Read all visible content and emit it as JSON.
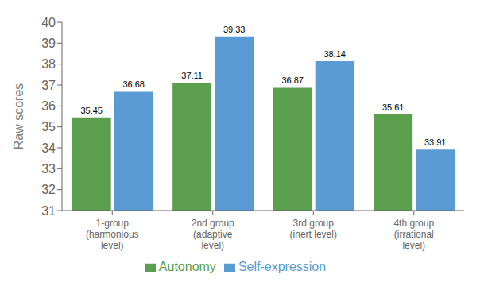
{
  "chart_data": {
    "type": "bar",
    "categories": [
      "1-group\n(harmonious\nlevel)",
      "2nd group\n(adaptive\nlevel)",
      "3rd group\n(inert level)",
      "4th group\n(irrational\nlevel)"
    ],
    "series": [
      {
        "name": "Autonomy",
        "color": "#5a9e4e",
        "values": [
          35.45,
          37.11,
          36.87,
          35.61
        ]
      },
      {
        "name": "Self-expression",
        "color": "#5b9bd5",
        "values": [
          36.68,
          39.33,
          38.14,
          33.91
        ]
      }
    ],
    "ylabel": "Raw scores",
    "ylim": [
      31,
      40
    ],
    "yticks": [
      31,
      32,
      33,
      34,
      35,
      36,
      37,
      38,
      39,
      40
    ],
    "grid": false,
    "legend": "bottom",
    "data_labels": true
  }
}
